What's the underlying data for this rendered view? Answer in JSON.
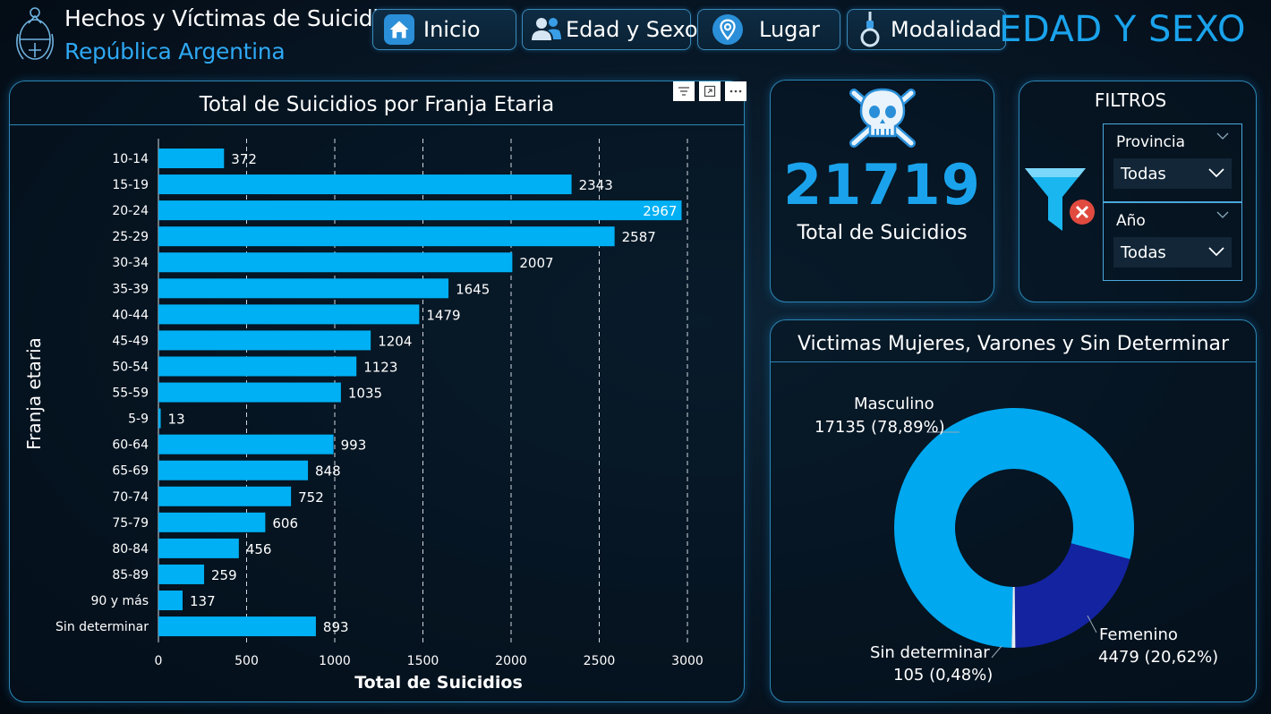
{
  "header": {
    "title_line1": "Hechos y Víctimas de Suicidio",
    "title_line2": "República Argentina",
    "page_title": "EDAD Y SEXO",
    "colors": {
      "accent": "#1aa3ec",
      "bar": "#00b0f4",
      "dark_blue": "#1220a0"
    }
  },
  "nav": [
    {
      "label": "Inicio",
      "icon": "home-icon"
    },
    {
      "label": "Edad y Sexo",
      "icon": "people-icon"
    },
    {
      "label": "Lugar",
      "icon": "location-pin-icon"
    },
    {
      "label": "Modalidad",
      "icon": "noose-icon"
    }
  ],
  "kpi": {
    "value": "21719",
    "label": "Total de Suicidios",
    "icon": "skull-crossbones-icon"
  },
  "filters": {
    "title": "FILTROS",
    "slicers": [
      {
        "label": "Provincia",
        "value": "Todas"
      },
      {
        "label": "Año",
        "value": "Todas"
      }
    ]
  },
  "chart_data": [
    {
      "type": "bar",
      "orientation": "horizontal",
      "title": "Total de Suicidios por Franja Etaria",
      "xlabel": "Total de Suicidios",
      "ylabel": "Franja etaria",
      "categories": [
        "10-14",
        "15-19",
        "20-24",
        "25-29",
        "30-34",
        "35-39",
        "40-44",
        "45-49",
        "50-54",
        "55-59",
        "5-9",
        "60-64",
        "65-69",
        "70-74",
        "75-79",
        "80-84",
        "85-89",
        "90 y más",
        "Sin determinar"
      ],
      "values": [
        372,
        2343,
        2967,
        2587,
        2007,
        1645,
        1479,
        1204,
        1123,
        1035,
        13,
        993,
        848,
        752,
        606,
        456,
        259,
        137,
        893
      ],
      "xlim": [
        0,
        3000
      ],
      "xticks": [
        0,
        500,
        1000,
        1500,
        2000,
        2500,
        3000
      ],
      "grid": true
    },
    {
      "type": "pie",
      "variant": "donut",
      "title": "Victimas Mujeres, Varones y Sin Determinar",
      "slices": [
        {
          "name": "Masculino",
          "value": 17135,
          "pct": "78,89%",
          "color": "#00a8f0"
        },
        {
          "name": "Femenino",
          "value": 4479,
          "pct": "20,62%",
          "color": "#1423a0"
        },
        {
          "name": "Sin determinar",
          "value": 105,
          "pct": "0,48%",
          "color": "#e8eef4"
        }
      ]
    }
  ]
}
